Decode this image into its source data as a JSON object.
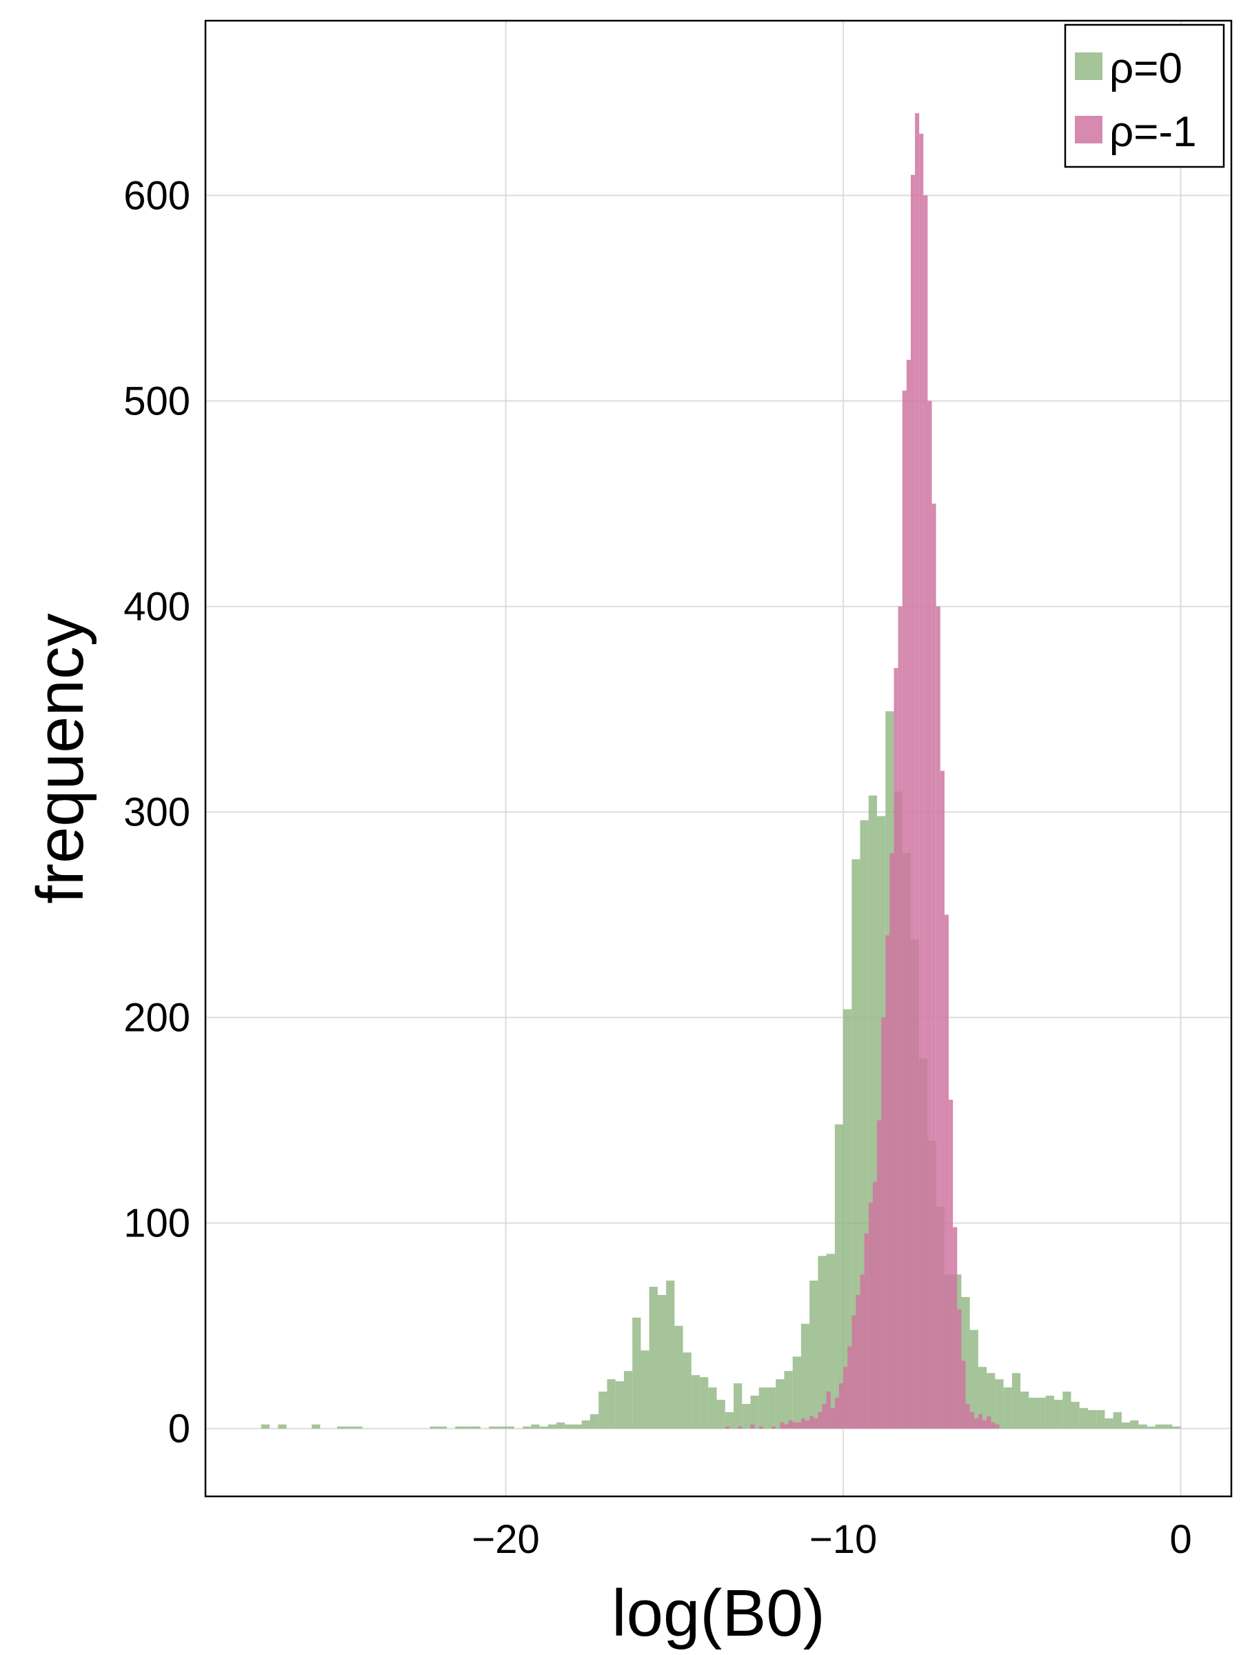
{
  "chart_data": {
    "type": "histogram",
    "xlabel": "log(B0)",
    "ylabel": "frequency",
    "xlim": [
      -28.9,
      1.5
    ],
    "ylim": [
      -33,
      685
    ],
    "xticks": [
      -20,
      -10,
      0
    ],
    "xtick_labels": [
      "−20",
      "−10",
      "0"
    ],
    "yticks": [
      0,
      100,
      200,
      300,
      400,
      500,
      600
    ],
    "ytick_labels": [
      "0",
      "100",
      "200",
      "300",
      "400",
      "500",
      "600"
    ],
    "grid": true,
    "legend_position": "top-right",
    "series": [
      {
        "name": "ρ=0",
        "color": "#8fb57f",
        "opacity": 0.8,
        "bin_width": 0.25,
        "bins": [
          [
            -27.25,
            2
          ],
          [
            -26.75,
            2
          ],
          [
            -25.75,
            2
          ],
          [
            -25.0,
            1
          ],
          [
            -24.75,
            1
          ],
          [
            -24.5,
            1
          ],
          [
            -22.25,
            1
          ],
          [
            -22.0,
            1
          ],
          [
            -21.5,
            1
          ],
          [
            -21.25,
            1
          ],
          [
            -21.0,
            1
          ],
          [
            -20.5,
            1
          ],
          [
            -20.25,
            1
          ],
          [
            -20.0,
            1
          ],
          [
            -19.5,
            1
          ],
          [
            -19.25,
            2
          ],
          [
            -19.0,
            1
          ],
          [
            -18.75,
            2
          ],
          [
            -18.5,
            3
          ],
          [
            -18.25,
            2
          ],
          [
            -18.0,
            2
          ],
          [
            -17.75,
            4
          ],
          [
            -17.5,
            7
          ],
          [
            -17.25,
            18
          ],
          [
            -17.0,
            24
          ],
          [
            -16.75,
            23
          ],
          [
            -16.5,
            28
          ],
          [
            -16.25,
            54
          ],
          [
            -16.0,
            38
          ],
          [
            -15.75,
            69
          ],
          [
            -15.5,
            65
          ],
          [
            -15.25,
            72
          ],
          [
            -15.0,
            50
          ],
          [
            -14.75,
            37
          ],
          [
            -14.5,
            26
          ],
          [
            -14.25,
            25
          ],
          [
            -14.0,
            20
          ],
          [
            -13.75,
            14
          ],
          [
            -13.5,
            8
          ],
          [
            -13.25,
            22
          ],
          [
            -13.0,
            12
          ],
          [
            -12.75,
            16
          ],
          [
            -12.5,
            20
          ],
          [
            -12.25,
            20
          ],
          [
            -12.0,
            24
          ],
          [
            -11.75,
            28
          ],
          [
            -11.5,
            35
          ],
          [
            -11.25,
            51
          ],
          [
            -11.0,
            72
          ],
          [
            -10.75,
            84
          ],
          [
            -10.5,
            85
          ],
          [
            -10.25,
            148
          ],
          [
            -10.0,
            204
          ],
          [
            -9.75,
            277
          ],
          [
            -9.5,
            296
          ],
          [
            -9.25,
            308
          ],
          [
            -9.0,
            298
          ],
          [
            -8.75,
            349
          ],
          [
            -8.5,
            310
          ],
          [
            -8.25,
            280
          ],
          [
            -8.0,
            238
          ],
          [
            -7.75,
            180
          ],
          [
            -7.5,
            140
          ],
          [
            -7.25,
            108
          ],
          [
            -7.0,
            75
          ],
          [
            -6.75,
            75
          ],
          [
            -6.5,
            64
          ],
          [
            -6.25,
            48
          ],
          [
            -6.0,
            30
          ],
          [
            -5.75,
            27
          ],
          [
            -5.5,
            24
          ],
          [
            -5.25,
            20
          ],
          [
            -5.0,
            27
          ],
          [
            -4.75,
            18
          ],
          [
            -4.5,
            15
          ],
          [
            -4.25,
            15
          ],
          [
            -4.0,
            16
          ],
          [
            -3.75,
            14
          ],
          [
            -3.5,
            18
          ],
          [
            -3.25,
            13
          ],
          [
            -3.0,
            10
          ],
          [
            -2.75,
            9
          ],
          [
            -2.5,
            9
          ],
          [
            -2.25,
            5
          ],
          [
            -2.0,
            8
          ],
          [
            -1.75,
            3
          ],
          [
            -1.5,
            4
          ],
          [
            -1.25,
            2
          ],
          [
            -1.0,
            1
          ],
          [
            -0.75,
            2
          ],
          [
            -0.5,
            2
          ],
          [
            -0.25,
            1
          ]
        ]
      },
      {
        "name": "ρ=-1",
        "color": "#cf76a1",
        "opacity": 0.85,
        "bin_width": 0.125,
        "bins": [
          [
            -13.5,
            1
          ],
          [
            -13.125,
            1
          ],
          [
            -12.75,
            2
          ],
          [
            -12.5,
            1
          ],
          [
            -12.125,
            1
          ],
          [
            -11.875,
            3
          ],
          [
            -11.75,
            2
          ],
          [
            -11.625,
            4
          ],
          [
            -11.5,
            3
          ],
          [
            -11.375,
            3
          ],
          [
            -11.25,
            5
          ],
          [
            -11.125,
            4
          ],
          [
            -11.0,
            6
          ],
          [
            -10.875,
            5
          ],
          [
            -10.75,
            8
          ],
          [
            -10.625,
            12
          ],
          [
            -10.5,
            18
          ],
          [
            -10.375,
            10
          ],
          [
            -10.25,
            15
          ],
          [
            -10.125,
            22
          ],
          [
            -10.0,
            30
          ],
          [
            -9.875,
            40
          ],
          [
            -9.75,
            55
          ],
          [
            -9.625,
            65
          ],
          [
            -9.5,
            75
          ],
          [
            -9.375,
            95
          ],
          [
            -9.25,
            110
          ],
          [
            -9.125,
            120
          ],
          [
            -9.0,
            150
          ],
          [
            -8.875,
            200
          ],
          [
            -8.75,
            240
          ],
          [
            -8.625,
            280
          ],
          [
            -8.5,
            370
          ],
          [
            -8.375,
            400
          ],
          [
            -8.25,
            505
          ],
          [
            -8.125,
            520
          ],
          [
            -8.0,
            610
          ],
          [
            -7.875,
            640
          ],
          [
            -7.75,
            630
          ],
          [
            -7.625,
            600
          ],
          [
            -7.5,
            500
          ],
          [
            -7.375,
            450
          ],
          [
            -7.25,
            400
          ],
          [
            -7.125,
            320
          ],
          [
            -7.0,
            250
          ],
          [
            -6.875,
            160
          ],
          [
            -6.75,
            98
          ],
          [
            -6.625,
            58
          ],
          [
            -6.5,
            33
          ],
          [
            -6.375,
            12
          ],
          [
            -6.25,
            8
          ],
          [
            -6.125,
            5
          ],
          [
            -6.0,
            7
          ],
          [
            -5.875,
            4
          ],
          [
            -5.75,
            6
          ],
          [
            -5.625,
            3
          ],
          [
            -5.5,
            2
          ]
        ]
      }
    ]
  }
}
